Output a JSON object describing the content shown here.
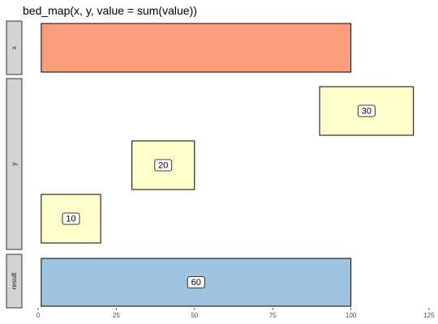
{
  "chart_data": {
    "type": "bar",
    "title": "bed_map(x, y, value = sum(value))",
    "xlabel": "",
    "ylabel": "",
    "xlim": [
      0,
      125
    ],
    "x_ticks": [
      0,
      25,
      50,
      75,
      100,
      125
    ],
    "x_tick_labels": [
      "0",
      "25",
      "50",
      "75",
      "100",
      "125"
    ],
    "grid": false,
    "facets": [
      {
        "name": "x",
        "intervals": [
          {
            "start": 1,
            "end": 100,
            "label": "",
            "color": "#fc9d7b"
          }
        ]
      },
      {
        "name": "y",
        "intervals": [
          {
            "start": 90,
            "end": 120,
            "label": "30",
            "color": "#ffffcc"
          },
          {
            "start": 30,
            "end": 50,
            "label": "20",
            "color": "#ffffcc"
          },
          {
            "start": 1,
            "end": 20,
            "label": "10",
            "color": "#ffffcc"
          }
        ]
      },
      {
        "name": "result",
        "intervals": [
          {
            "start": 1,
            "end": 100,
            "label": "60",
            "color": "#9ec3df"
          }
        ]
      }
    ]
  }
}
